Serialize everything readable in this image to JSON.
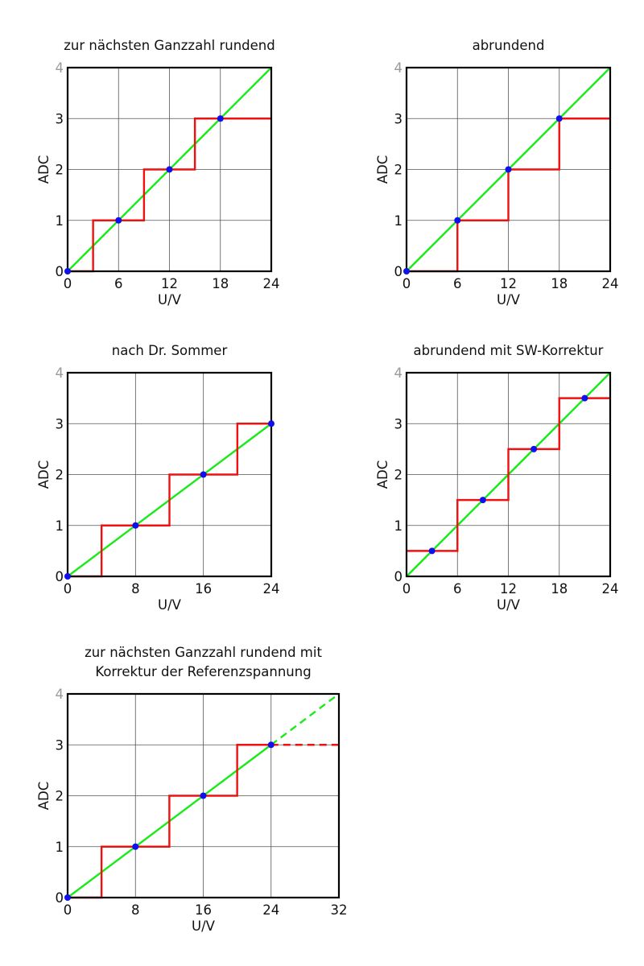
{
  "colors": {
    "ideal": "#1aea1a",
    "step": "#ef1010",
    "points": "#1010ee",
    "top_tick": "#9a9a9a"
  },
  "chart_data": [
    {
      "type": "line",
      "title": [
        "zur nächsten Ganzzahl rundend"
      ],
      "xlabel": "U/V",
      "ylabel": "ADC",
      "xlim": [
        0,
        24
      ],
      "ylim": [
        0,
        4
      ],
      "xticks": [
        0,
        6,
        12,
        18,
        24
      ],
      "xtick_labels": [
        "0",
        "6",
        "12",
        "18",
        "24"
      ],
      "yticks": [
        0,
        1,
        2,
        3,
        4
      ],
      "ytick_labels": [
        "0",
        "1",
        "2",
        "3",
        "4"
      ],
      "grid": true,
      "series": [
        {
          "role": "ideal",
          "x": [
            0,
            24
          ],
          "y": [
            0,
            4
          ]
        },
        {
          "role": "step",
          "x": [
            0,
            3,
            3,
            9,
            9,
            15,
            15,
            24
          ],
          "y": [
            0,
            0,
            1,
            1,
            2,
            2,
            3,
            3
          ]
        },
        {
          "role": "points",
          "x": [
            0,
            6,
            12,
            18
          ],
          "y": [
            0,
            1,
            2,
            3
          ]
        }
      ]
    },
    {
      "type": "line",
      "title": [
        "abrundend"
      ],
      "xlabel": "U/V",
      "ylabel": "ADC",
      "xlim": [
        0,
        24
      ],
      "ylim": [
        0,
        4
      ],
      "xticks": [
        0,
        6,
        12,
        18,
        24
      ],
      "xtick_labels": [
        "0",
        "6",
        "12",
        "18",
        "24"
      ],
      "yticks": [
        0,
        1,
        2,
        3,
        4
      ],
      "ytick_labels": [
        "0",
        "1",
        "2",
        "3",
        "4"
      ],
      "grid": true,
      "series": [
        {
          "role": "ideal",
          "x": [
            0,
            24
          ],
          "y": [
            0,
            4
          ]
        },
        {
          "role": "step",
          "x": [
            0,
            6,
            6,
            12,
            12,
            18,
            18,
            24
          ],
          "y": [
            0,
            0,
            1,
            1,
            2,
            2,
            3,
            3
          ]
        },
        {
          "role": "points",
          "x": [
            0,
            6,
            12,
            18
          ],
          "y": [
            0,
            1,
            2,
            3
          ]
        }
      ]
    },
    {
      "type": "line",
      "title": [
        "nach Dr. Sommer"
      ],
      "xlabel": "U/V",
      "ylabel": "ADC",
      "xlim": [
        0,
        24
      ],
      "ylim": [
        0,
        4
      ],
      "xticks": [
        0,
        8,
        16,
        24
      ],
      "xtick_labels": [
        "0",
        "8",
        "16",
        "24"
      ],
      "yticks": [
        0,
        1,
        2,
        3,
        4
      ],
      "ytick_labels": [
        "0",
        "1",
        "2",
        "3",
        "4"
      ],
      "grid": true,
      "series": [
        {
          "role": "ideal",
          "x": [
            0,
            24
          ],
          "y": [
            0,
            3
          ]
        },
        {
          "role": "step",
          "x": [
            0,
            4,
            4,
            12,
            12,
            20,
            20,
            24
          ],
          "y": [
            0,
            0,
            1,
            1,
            2,
            2,
            3,
            3
          ]
        },
        {
          "role": "points",
          "x": [
            0,
            8,
            16,
            24
          ],
          "y": [
            0,
            1,
            2,
            3
          ]
        }
      ]
    },
    {
      "type": "line",
      "title": [
        "abrundend mit SW-Korrektur"
      ],
      "xlabel": "U/V",
      "ylabel": "ADC",
      "xlim": [
        0,
        24
      ],
      "ylim": [
        0,
        4
      ],
      "xticks": [
        0,
        6,
        12,
        18,
        24
      ],
      "xtick_labels": [
        "0",
        "6",
        "12",
        "18",
        "24"
      ],
      "yticks": [
        0,
        1,
        2,
        3,
        4
      ],
      "ytick_labels": [
        "0",
        "1",
        "2",
        "3",
        "4"
      ],
      "grid": true,
      "series": [
        {
          "role": "ideal",
          "x": [
            0,
            24
          ],
          "y": [
            0,
            4
          ]
        },
        {
          "role": "step",
          "x": [
            0,
            6,
            6,
            12,
            12,
            18,
            18,
            24
          ],
          "y": [
            0.5,
            0.5,
            1.5,
            1.5,
            2.5,
            2.5,
            3.5,
            3.5
          ]
        },
        {
          "role": "points",
          "x": [
            3,
            9,
            15,
            21
          ],
          "y": [
            0.5,
            1.5,
            2.5,
            3.5
          ]
        }
      ]
    },
    {
      "type": "line",
      "title": [
        "zur nächsten Ganzzahl rundend mit",
        "Korrektur der Referenzspannung"
      ],
      "xlabel": "U/V",
      "ylabel": "ADC",
      "xlim": [
        0,
        32
      ],
      "ylim": [
        0,
        4
      ],
      "xticks": [
        0,
        8,
        16,
        24,
        32
      ],
      "xtick_labels": [
        "0",
        "8",
        "16",
        "24",
        "32"
      ],
      "yticks": [
        0,
        1,
        2,
        3,
        4
      ],
      "ytick_labels": [
        "0",
        "1",
        "2",
        "3",
        "4"
      ],
      "grid": true,
      "series": [
        {
          "role": "ideal",
          "x": [
            0,
            24
          ],
          "y": [
            0,
            3
          ]
        },
        {
          "role": "ideal",
          "dashed": true,
          "x": [
            24,
            32
          ],
          "y": [
            3,
            4
          ]
        },
        {
          "role": "step",
          "x": [
            0,
            4,
            4,
            12,
            12,
            20,
            20,
            24
          ],
          "y": [
            0,
            0,
            1,
            1,
            2,
            2,
            3,
            3
          ]
        },
        {
          "role": "step",
          "dashed": true,
          "x": [
            24,
            32
          ],
          "y": [
            3,
            3
          ]
        },
        {
          "role": "points",
          "x": [
            0,
            8,
            16,
            24
          ],
          "y": [
            0,
            1,
            2,
            3
          ]
        }
      ]
    }
  ]
}
